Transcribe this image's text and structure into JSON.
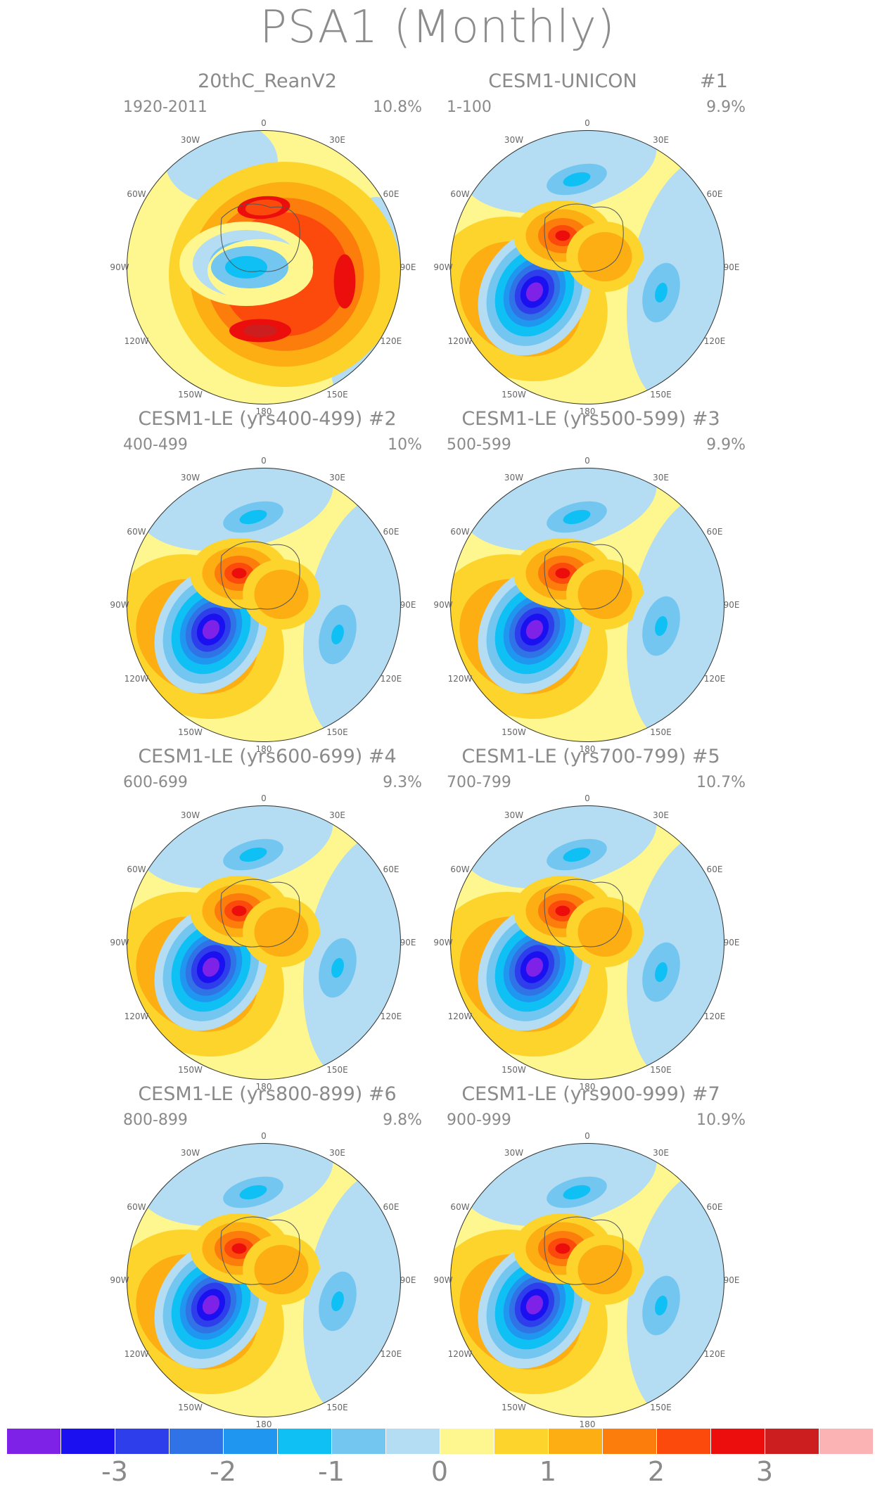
{
  "title": "PSA1 (Monthly)",
  "longitude_labels": [
    "0",
    "30E",
    "60E",
    "90E",
    "120E",
    "150E",
    "180",
    "150W",
    "120W",
    "90W",
    "60W",
    "30W"
  ],
  "panels": [
    {
      "title": "20thC_ReanV2",
      "tag": "",
      "years": "1920-2011",
      "percent": "10.8%",
      "pattern": "obs"
    },
    {
      "title": "CESM1-UNICON",
      "tag": "#1",
      "years": "1-100",
      "percent": "9.9%",
      "pattern": "model"
    },
    {
      "title": "CESM1-LE (yrs400-499) #2",
      "tag": "",
      "years": "400-499",
      "percent": "10%",
      "pattern": "model"
    },
    {
      "title": "CESM1-LE (yrs500-599) #3",
      "tag": "",
      "years": "500-599",
      "percent": "9.9%",
      "pattern": "model"
    },
    {
      "title": "CESM1-LE (yrs600-699) #4",
      "tag": "",
      "years": "600-699",
      "percent": "9.3%",
      "pattern": "model"
    },
    {
      "title": "CESM1-LE (yrs700-799) #5",
      "tag": "",
      "years": "700-799",
      "percent": "10.7%",
      "pattern": "model"
    },
    {
      "title": "CESM1-LE (yrs800-899) #6",
      "tag": "",
      "years": "800-899",
      "percent": "9.8%",
      "pattern": "model"
    },
    {
      "title": "CESM1-LE (yrs900-999) #7",
      "tag": "",
      "years": "900-999",
      "percent": "10.9%",
      "pattern": "model"
    }
  ],
  "colorbar": {
    "colors": [
      "#7f22e8",
      "#1a10f0",
      "#2e3eeb",
      "#2f73e6",
      "#1f97f0",
      "#0fc0f5",
      "#72c6f0",
      "#b4dcf2",
      "#fef68e",
      "#fcd42c",
      "#fcae12",
      "#fc7c0c",
      "#fc4a0c",
      "#ec0d0d",
      "#cc1e1e",
      "#fbb3b3"
    ],
    "labels": [
      "-3",
      "-2",
      "-1",
      "0",
      "1",
      "2",
      "3"
    ]
  }
}
